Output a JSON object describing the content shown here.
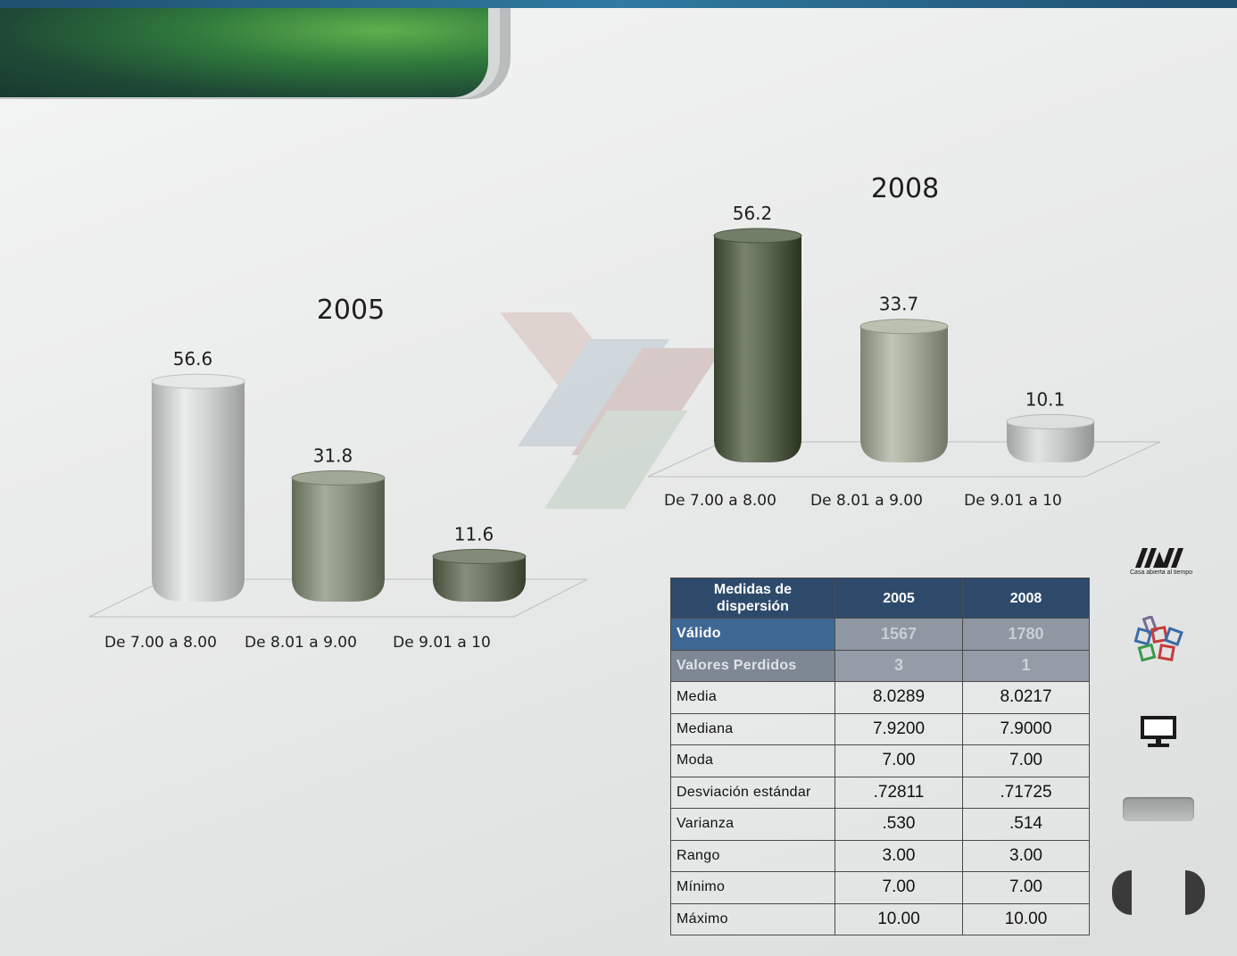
{
  "chart_data": [
    {
      "type": "bar",
      "title": "2005",
      "categories": [
        "De 7.00 a 8.00",
        "De 8.01 a 9.00",
        "De 9.01 a 10"
      ],
      "values": [
        56.6,
        31.8,
        11.6
      ],
      "colors": [
        "#d2d4d4",
        "#8a9480",
        "#6c7662"
      ],
      "ylim": [
        0,
        60
      ],
      "grid": false,
      "legend": "none"
    },
    {
      "type": "bar",
      "title": "2008",
      "categories": [
        "De 7.00 a 8.00",
        "De 8.01 a 9.00",
        "De 9.01 a 10"
      ],
      "values": [
        56.2,
        33.7,
        10.1
      ],
      "colors": [
        "#5f6a55",
        "#a7ad9d",
        "#c9cbcb"
      ],
      "ylim": [
        0,
        60
      ],
      "grid": false,
      "legend": "none"
    }
  ],
  "table": {
    "headers": [
      "Medidas de dispersión",
      "2005",
      "2008"
    ],
    "rows": [
      {
        "label": "Válido",
        "v2005": "1567",
        "v2008": "1780"
      },
      {
        "label": "Valores Perdidos",
        "v2005": "3",
        "v2008": "1"
      },
      {
        "label": "Media",
        "v2005": "8.0289",
        "v2008": "8.0217"
      },
      {
        "label": "Mediana",
        "v2005": "7.9200",
        "v2008": "7.9000"
      },
      {
        "label": "Moda",
        "v2005": "7.00",
        "v2008": "7.00"
      },
      {
        "label": "Desviación estándar",
        "v2005": ".72811",
        "v2008": ".71725"
      },
      {
        "label": "Varianza",
        "v2005": ".530",
        "v2008": ".514"
      },
      {
        "label": "Rango",
        "v2005": "3.00",
        "v2008": "3.00"
      },
      {
        "label": "Mínimo",
        "v2005": "7.00",
        "v2008": "7.00"
      },
      {
        "label": "Máximo",
        "v2005": "10.00",
        "v2008": "10.00"
      }
    ]
  },
  "sidebar": {
    "logo_caption": "Casa abierta al tiempo",
    "icons": [
      "uam-logo-icon",
      "frames-logo-icon",
      "monitor-icon",
      "prev-icon",
      "next-icon"
    ]
  }
}
